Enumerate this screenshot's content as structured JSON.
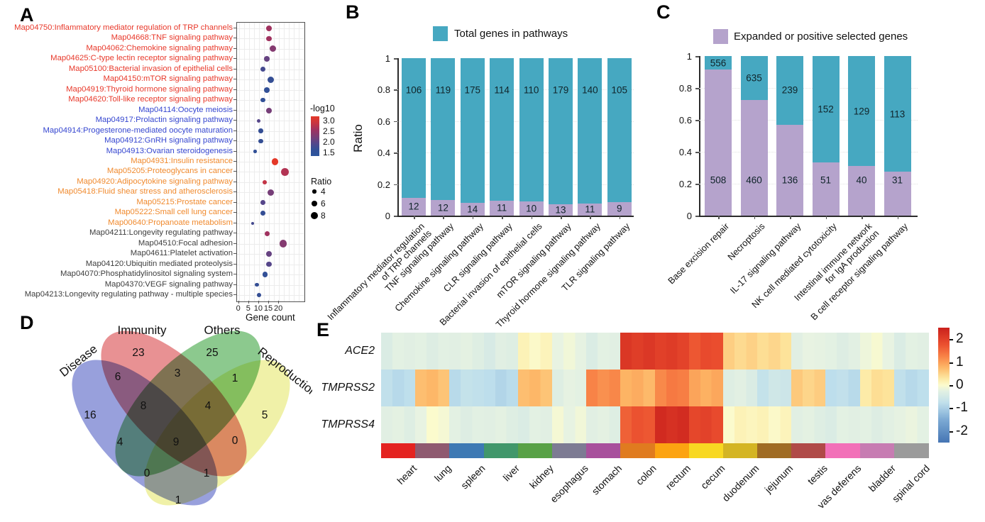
{
  "chart_data": [
    {
      "panel_label": "A",
      "type": "scatter",
      "xlabel": "Gene count",
      "x_tick_labels": [
        "0",
        "5",
        "10",
        "15",
        "20"
      ],
      "x_ticks": [
        0,
        5,
        10,
        15,
        20
      ],
      "legend": {
        "color_title": "-log10",
        "color_tick_labels": [
          "3.0",
          "2.5",
          "2.0",
          "1.5"
        ],
        "size_title": "Ratio",
        "size_labels": [
          "4",
          "6",
          "8"
        ],
        "size_values": [
          4,
          6,
          8
        ]
      },
      "label_group_colors": {
        "red": "#e8392b",
        "blue": "#3647d0",
        "orange": "#f08a2e",
        "black": "#3d3d3d"
      },
      "points": [
        {
          "label": "Map04750:Inflammatory mediator regulation of TRP channels",
          "group": "red",
          "gene_count": 15,
          "ratio": 6,
          "neg_log10": 2.5
        },
        {
          "label": "Map04668:TNF signaling pathway",
          "group": "red",
          "gene_count": 15,
          "ratio": 6,
          "neg_log10": 2.5
        },
        {
          "label": "Map04062:Chemokine signaling pathway",
          "group": "red",
          "gene_count": 17,
          "ratio": 7,
          "neg_log10": 2.3
        },
        {
          "label": "Map04625:C-type lectin receptor signaling pathway",
          "group": "red",
          "gene_count": 14,
          "ratio": 6,
          "neg_log10": 2.1
        },
        {
          "label": "Map05100:Bacterial invasion of epithelial cells",
          "group": "red",
          "gene_count": 12,
          "ratio": 5.5,
          "neg_log10": 1.9
        },
        {
          "label": "Map04150:mTOR signaling pathway",
          "group": "red",
          "gene_count": 16,
          "ratio": 7,
          "neg_log10": 1.8
        },
        {
          "label": "Map04919:Thyroid hormone signaling pathway",
          "group": "red",
          "gene_count": 14,
          "ratio": 6,
          "neg_log10": 1.7
        },
        {
          "label": "Map04620:Toll-like receptor signaling pathway",
          "group": "red",
          "gene_count": 12,
          "ratio": 5,
          "neg_log10": 1.7
        },
        {
          "label": "Map04114:Oocyte meiosis",
          "group": "blue",
          "gene_count": 15,
          "ratio": 6,
          "neg_log10": 2.2
        },
        {
          "label": "Map04917:Prolactin signaling pathway",
          "group": "blue",
          "gene_count": 10,
          "ratio": 4,
          "neg_log10": 2.0
        },
        {
          "label": "Map04914:Progesterone-mediated oocyte maturation",
          "group": "blue",
          "gene_count": 11,
          "ratio": 5,
          "neg_log10": 1.8
        },
        {
          "label": "Map04912:GnRH signaling pathway",
          "group": "blue",
          "gene_count": 11,
          "ratio": 5,
          "neg_log10": 1.8
        },
        {
          "label": "Map04913:Ovarian steroidogenesis",
          "group": "blue",
          "gene_count": 8,
          "ratio": 3.5,
          "neg_log10": 1.7
        },
        {
          "label": "Map04931:Insulin resistance",
          "group": "orange",
          "gene_count": 18,
          "ratio": 7,
          "neg_log10": 3.0
        },
        {
          "label": "Map05205:Proteoglycans in cancer",
          "group": "orange",
          "gene_count": 23,
          "ratio": 8,
          "neg_log10": 2.6
        },
        {
          "label": "Map04920:Adipocytokine signaling pathway",
          "group": "orange",
          "gene_count": 13,
          "ratio": 4.5,
          "neg_log10": 2.7
        },
        {
          "label": "Map05418:Fluid shear stress and atherosclerosis",
          "group": "orange",
          "gene_count": 16,
          "ratio": 7,
          "neg_log10": 2.2
        },
        {
          "label": "Map05215:Prostate cancer",
          "group": "orange",
          "gene_count": 12,
          "ratio": 5.5,
          "neg_log10": 2.0
        },
        {
          "label": "Map05222:Small cell lung cancer",
          "group": "orange",
          "gene_count": 12,
          "ratio": 5.5,
          "neg_log10": 1.8
        },
        {
          "label": "Map00640:Propanoate metabolism",
          "group": "orange",
          "gene_count": 7,
          "ratio": 3,
          "neg_log10": 1.9
        },
        {
          "label": "Map04211:Longevity regulating pathway",
          "group": "black",
          "gene_count": 14,
          "ratio": 5.5,
          "neg_log10": 2.5
        },
        {
          "label": "Map04510:Focal adhesion",
          "group": "black",
          "gene_count": 22,
          "ratio": 8,
          "neg_log10": 2.3
        },
        {
          "label": "Map04611:Platelet activation",
          "group": "black",
          "gene_count": 15,
          "ratio": 6,
          "neg_log10": 2.1
        },
        {
          "label": "Map04120:Ubiquitin mediated proteolysis",
          "group": "black",
          "gene_count": 15,
          "ratio": 6,
          "neg_log10": 2.0
        },
        {
          "label": "Map04070:Phosphatidylinositol signaling system",
          "group": "black",
          "gene_count": 13,
          "ratio": 5.5,
          "neg_log10": 1.7
        },
        {
          "label": "Map04370:VEGF signaling pathway",
          "group": "black",
          "gene_count": 9,
          "ratio": 4,
          "neg_log10": 1.8
        },
        {
          "label": "Map04213:Longevity regulating pathway - multiple species",
          "group": "black",
          "gene_count": 10,
          "ratio": 4.5,
          "neg_log10": 1.8
        }
      ]
    },
    {
      "panel_label": "B",
      "type": "bar",
      "stacked": true,
      "legend_label": "Total genes in pathways",
      "legend_color": "#46a8c1",
      "ylabel": "Ratio",
      "y_tick_labels": [
        "1",
        "0.8",
        "0.6",
        "0.4",
        "0.2",
        "0"
      ],
      "categories": [
        "Inflammatory mediator regulation\nof TRP channels",
        "TNF signaling pathway",
        "Chemokine signaling pathway",
        "CLR signaling pathway",
        "Bacterial invasion of epithelial cells",
        "mTOR signaling pathway",
        "Thyroid hormone signaling pathway",
        "TLR signaling pathway"
      ],
      "series": [
        {
          "name": "Expanded or positive selected genes",
          "color": "#b5a3cc",
          "values": [
            12,
            12,
            14,
            11,
            10,
            13,
            11,
            9
          ]
        },
        {
          "name": "Total genes in pathways",
          "color": "#46a8c1",
          "values": [
            106,
            119,
            175,
            114,
            110,
            179,
            140,
            105
          ]
        }
      ]
    },
    {
      "panel_label": "C",
      "type": "bar",
      "stacked": true,
      "legend_label": "Expanded or positive selected genes",
      "legend_color": "#b5a3cc",
      "y_tick_labels": [
        "1",
        "0.8",
        "0.6",
        "0.4",
        "0.2",
        "0"
      ],
      "categories": [
        "Base excision repair",
        "Necroptosis",
        "IL-17 signaling pathway",
        "NK cell mediated cytotoxicity",
        "Intestinal immune network\nfor IgA production",
        "B cell receptor signaling pathway"
      ],
      "series": [
        {
          "name": "Expanded or positive selected genes",
          "color": "#b5a3cc",
          "values": [
            508,
            460,
            136,
            51,
            40,
            31
          ]
        },
        {
          "name": "Total genes in pathways",
          "color": "#46a8c1",
          "values": [
            556,
            635,
            239,
            152,
            129,
            113
          ]
        }
      ]
    },
    {
      "panel_label": "D",
      "type": "venn",
      "sets": [
        {
          "name": "Disease",
          "color": "#98a0dc"
        },
        {
          "name": "Immunity",
          "color": "#e89193"
        },
        {
          "name": "Others",
          "color": "#8cc98e"
        },
        {
          "name": "Reproduction",
          "color": "#f0f1a8"
        }
      ],
      "counts": {
        "disease": 16,
        "immunity": 23,
        "others": 25,
        "reproduction": 5,
        "disease_immunity": 6,
        "immunity_others": 3,
        "others_reproduction": 1,
        "disease_immunity_others": 8,
        "immunity_others_reproduction": 4,
        "disease_others": 4,
        "all_four": 9,
        "immunity_reproduction": 0,
        "disease_others_reproduction": 0,
        "disease_immunity_reproduction": 1,
        "disease_reproduction": 1
      }
    },
    {
      "panel_label": "E",
      "type": "heatmap",
      "rows": [
        "ACE2",
        "TMPRSS2",
        "TMPRSS4"
      ],
      "columns": [
        "heart",
        "lung",
        "spleen",
        "liver",
        "kidney",
        "esophagus",
        "stomach",
        "colon",
        "rectum",
        "cecum",
        "duodenum",
        "jejunum",
        "testis",
        "vas deferens",
        "bladder",
        "spinal cord"
      ],
      "column_colors": [
        "#e42320",
        "#8f5a70",
        "#3d79b4",
        "#41976b",
        "#58a146",
        "#7d7b93",
        "#a8509c",
        "#e07b1f",
        "#fca311",
        "#f8d822",
        "#d4b524",
        "#a06c24",
        "#b04a48",
        "#f270b8",
        "#c77cb2",
        "#9b9b9b"
      ],
      "values": [
        [
          -0.3,
          -0.3,
          -0.3,
          -0.35,
          0.1,
          -0.15,
          -0.3,
          2.1,
          2.0,
          1.8,
          0.5,
          0.4,
          -0.2,
          -0.3,
          -0.1,
          -0.3
        ],
        [
          -0.8,
          0.7,
          -0.75,
          -0.85,
          0.7,
          -0.25,
          1.2,
          0.8,
          1.3,
          0.9,
          -0.35,
          -0.6,
          0.55,
          -0.8,
          0.35,
          -0.8
        ],
        [
          -0.3,
          -0.05,
          -0.3,
          -0.3,
          -0.3,
          -0.1,
          -0.3,
          1.7,
          2.3,
          1.9,
          0.1,
          0.1,
          -0.3,
          -0.3,
          -0.3,
          -0.2
        ]
      ],
      "colorbar_tick_labels": [
        "2",
        "1",
        "0",
        "-1",
        "-2"
      ],
      "colorbar_ticks": [
        2,
        1,
        0,
        -1,
        -2
      ],
      "colorbar_range": [
        -2.5,
        2.5
      ]
    }
  ]
}
